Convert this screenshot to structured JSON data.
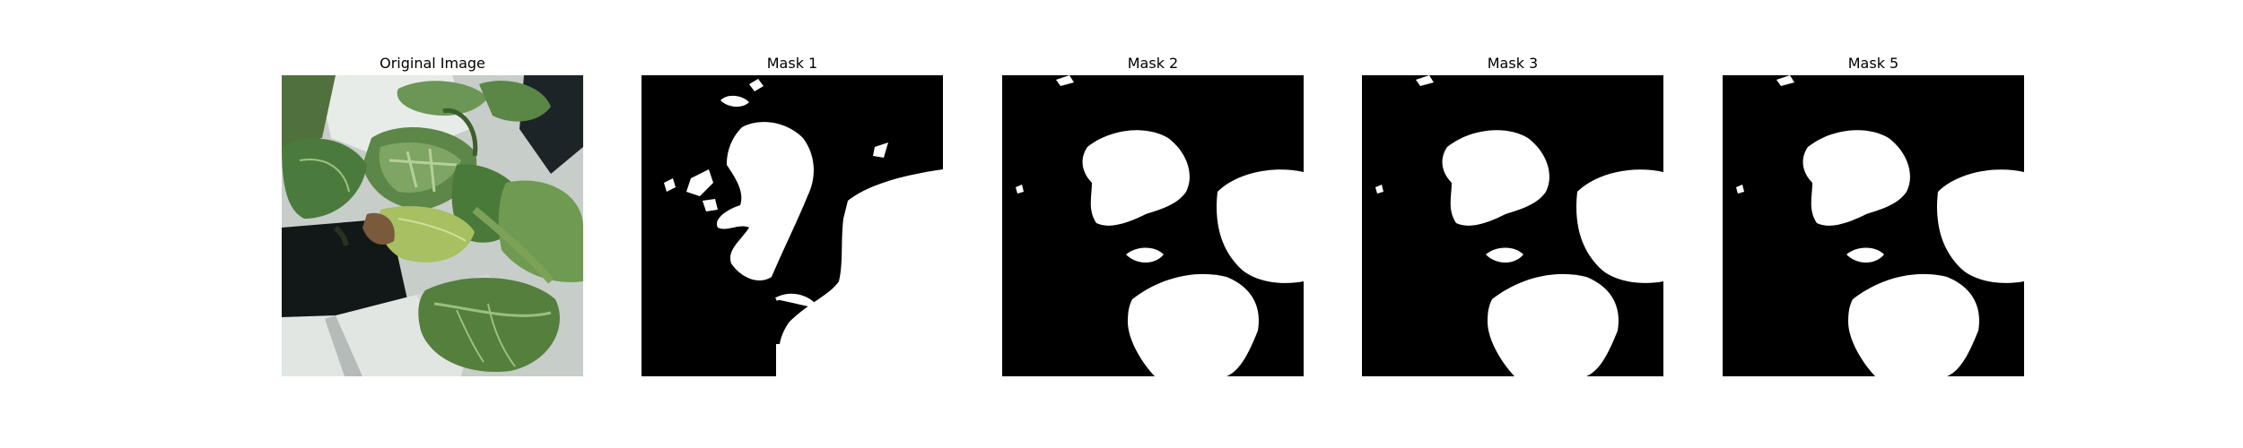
{
  "panels": [
    {
      "title": "Original Image",
      "kind": "photo"
    },
    {
      "title": "Mask 1",
      "kind": "mask"
    },
    {
      "title": "Mask 2",
      "kind": "mask"
    },
    {
      "title": "Mask 3",
      "kind": "mask"
    },
    {
      "title": "Mask 5",
      "kind": "mask"
    }
  ],
  "colors": {
    "mask_background": "#000000",
    "mask_foreground": "#ffffff",
    "leaf_dark": "#3f6b32",
    "leaf_mid": "#5f8b49",
    "leaf_light": "#8db36b",
    "pot_white": "#dfe3e0",
    "pot_dark": "#101515"
  }
}
